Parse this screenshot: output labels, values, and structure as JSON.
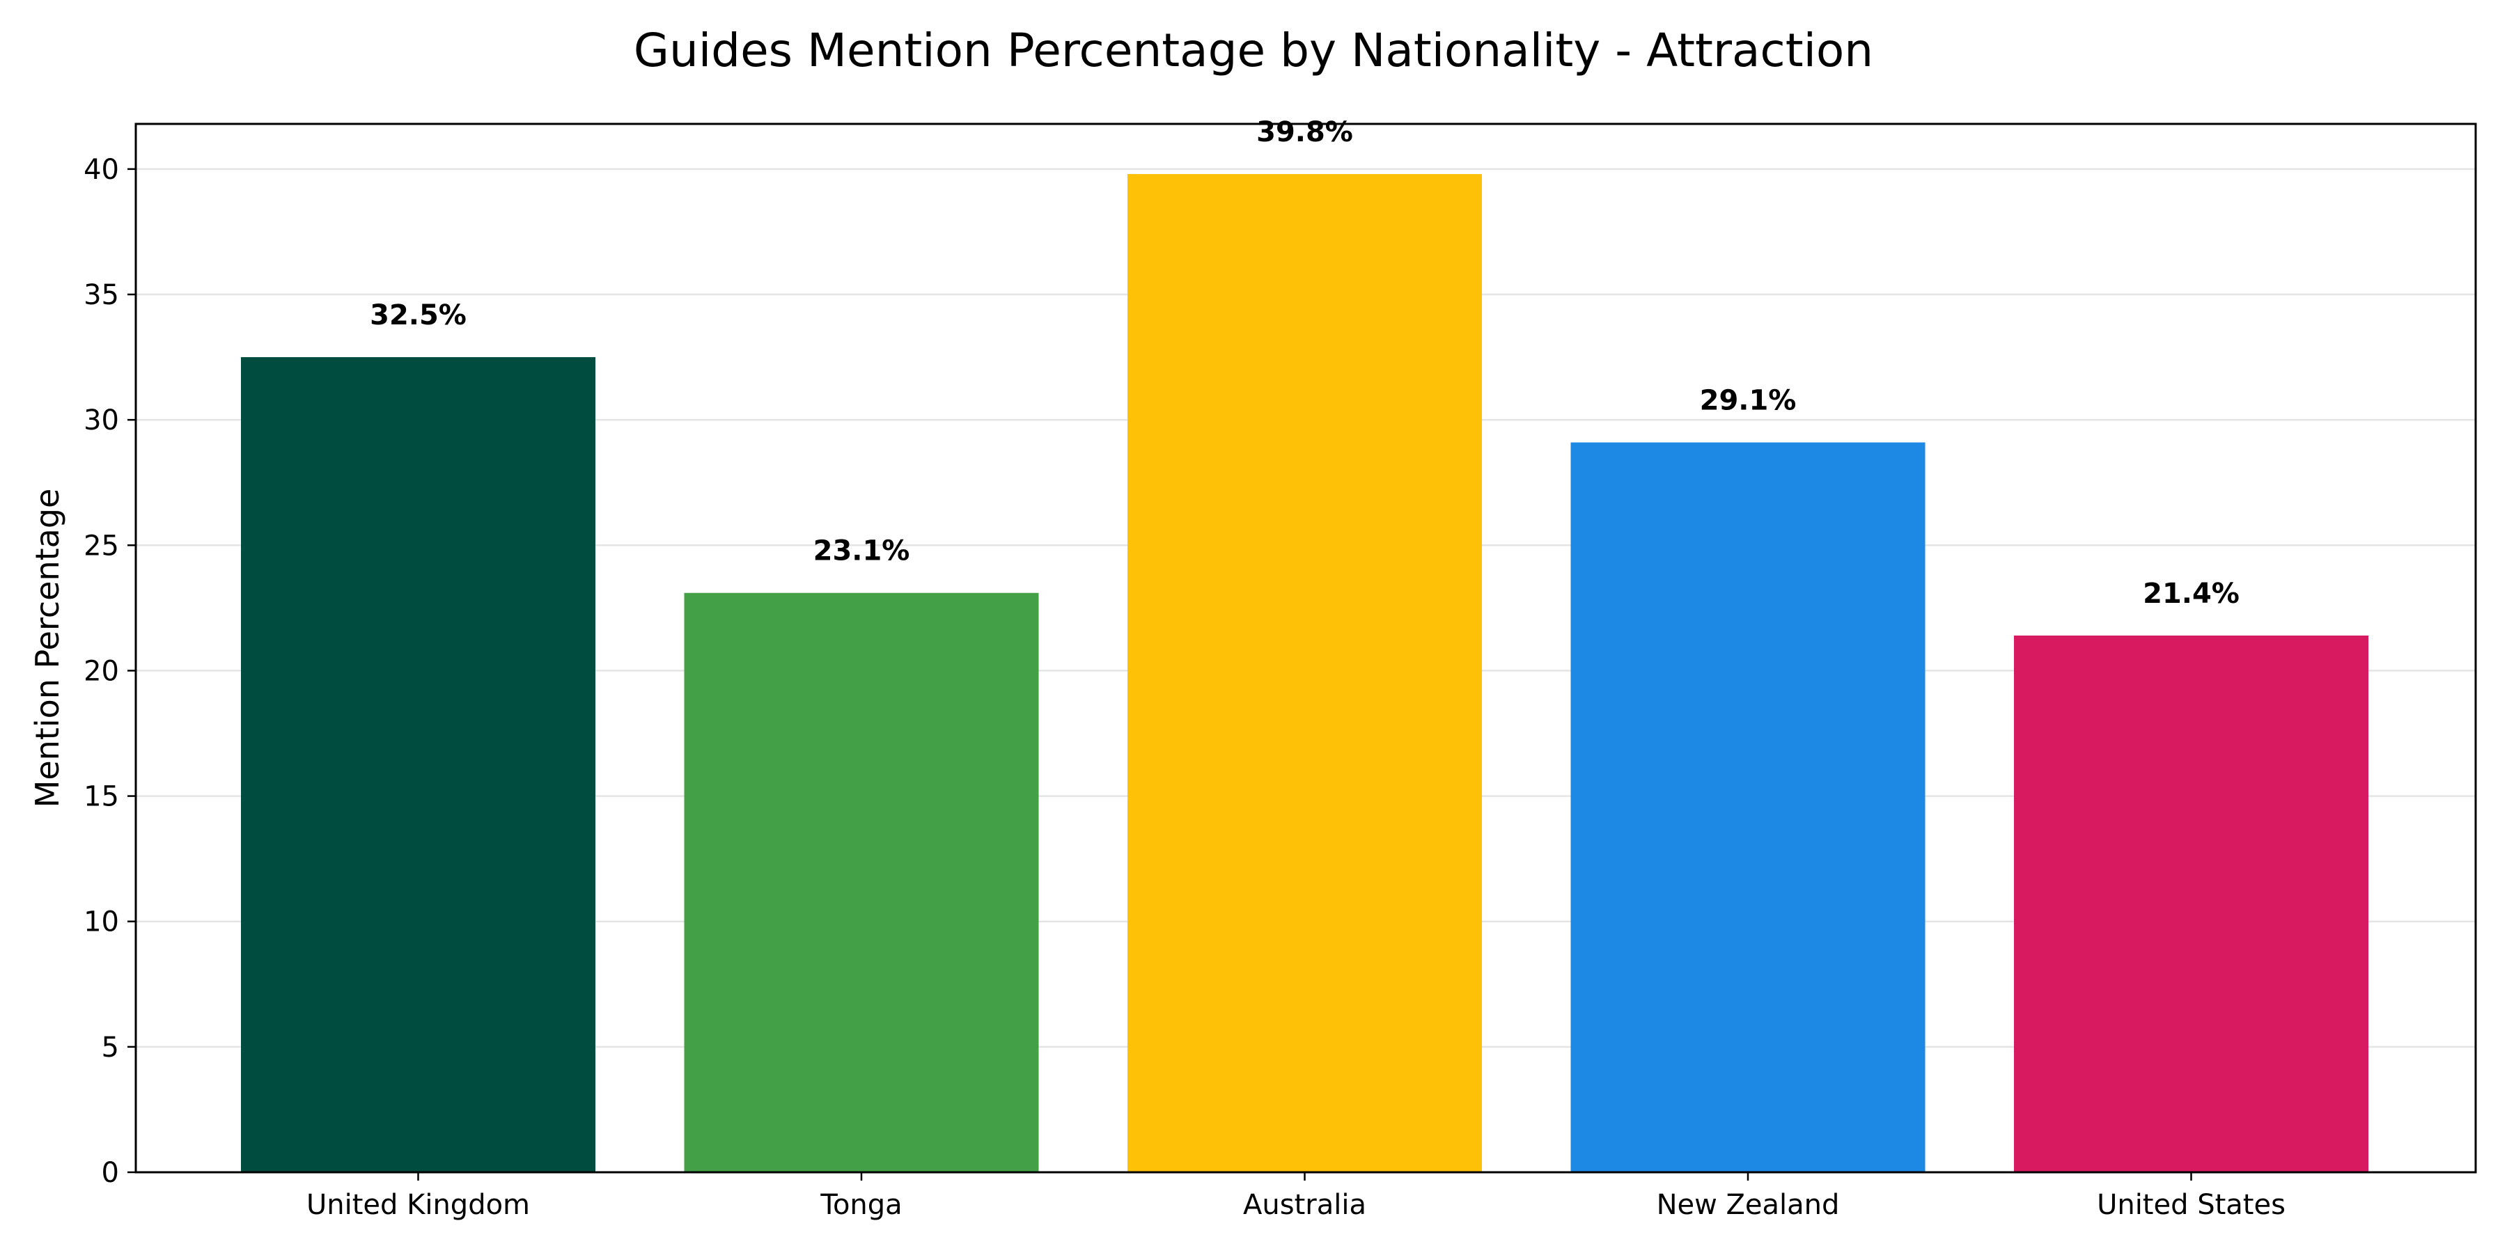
{
  "chart_data": {
    "type": "bar",
    "title": "Guides Mention Percentage by Nationality - Attraction",
    "xlabel": "",
    "ylabel": "Mention Percentage",
    "categories": [
      "United Kingdom",
      "Tonga",
      "Australia",
      "New Zealand",
      "United States"
    ],
    "values": [
      32.5,
      23.1,
      39.8,
      29.1,
      21.4
    ],
    "value_labels": [
      "32.5%",
      "23.1%",
      "39.8%",
      "29.1%",
      "21.4%"
    ],
    "colors": [
      "#004D40",
      "#43A047",
      "#FFC107",
      "#1E88E5",
      "#D81B60"
    ],
    "ylim": [
      0,
      41.8
    ],
    "yticks": [
      0,
      5,
      10,
      15,
      20,
      25,
      30,
      35,
      40
    ],
    "grid": "horizontal",
    "legend": "none"
  }
}
